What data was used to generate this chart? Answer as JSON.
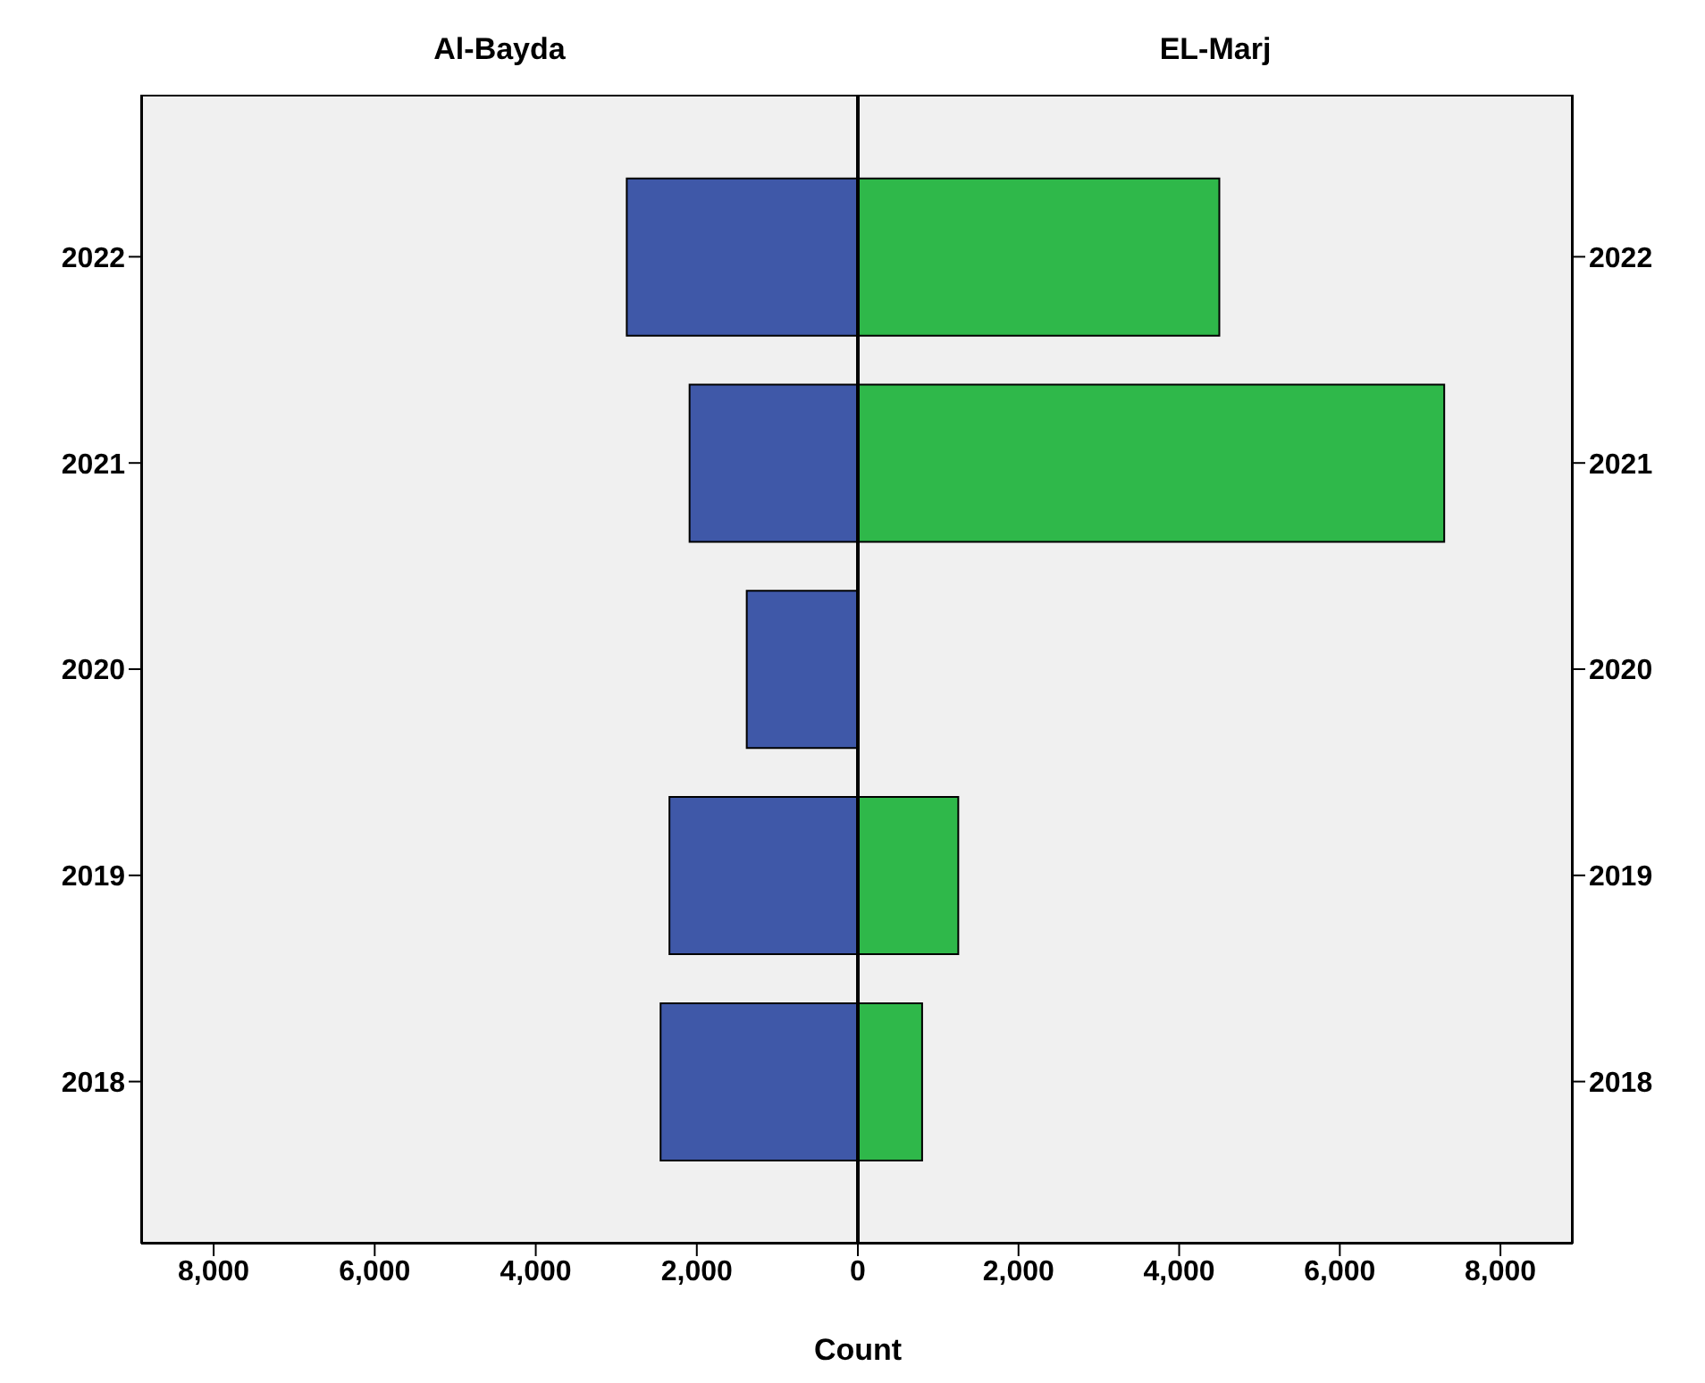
{
  "chart_data": [
    {
      "type": "bar",
      "title": "Al-Bayda",
      "xlabel": "Count",
      "orientation": "horizontal",
      "categories": [
        "2022",
        "2021",
        "2020",
        "2019",
        "2018"
      ],
      "color": "#3f58a8",
      "values": [
        2870,
        2090,
        1380,
        2340,
        2450
      ],
      "xlim": [
        8900,
        0
      ],
      "xticks": [
        {
          "value": 8000,
          "label": "8,000"
        },
        {
          "value": 6000,
          "label": "6,000"
        },
        {
          "value": 4000,
          "label": "4,000"
        },
        {
          "value": 2000,
          "label": "2,000"
        },
        {
          "value": 0,
          "label": null
        }
      ]
    },
    {
      "type": "bar",
      "title": "EL-Marj",
      "orientation": "horizontal",
      "categories": [
        "2022",
        "2021",
        "2020",
        "2019",
        "2018"
      ],
      "color": "#2fb84a",
      "values": [
        4500,
        7300,
        0,
        1250,
        800
      ],
      "xlim": [
        0,
        8900
      ],
      "xticks": [
        0,
        {
          "value": 2000,
          "label": "2,000"
        },
        {
          "value": 4000,
          "label": "4,000"
        },
        {
          "value": 6000,
          "label": "6,000"
        },
        {
          "value": 8000,
          "label": "8,000"
        }
      ]
    }
  ]
}
